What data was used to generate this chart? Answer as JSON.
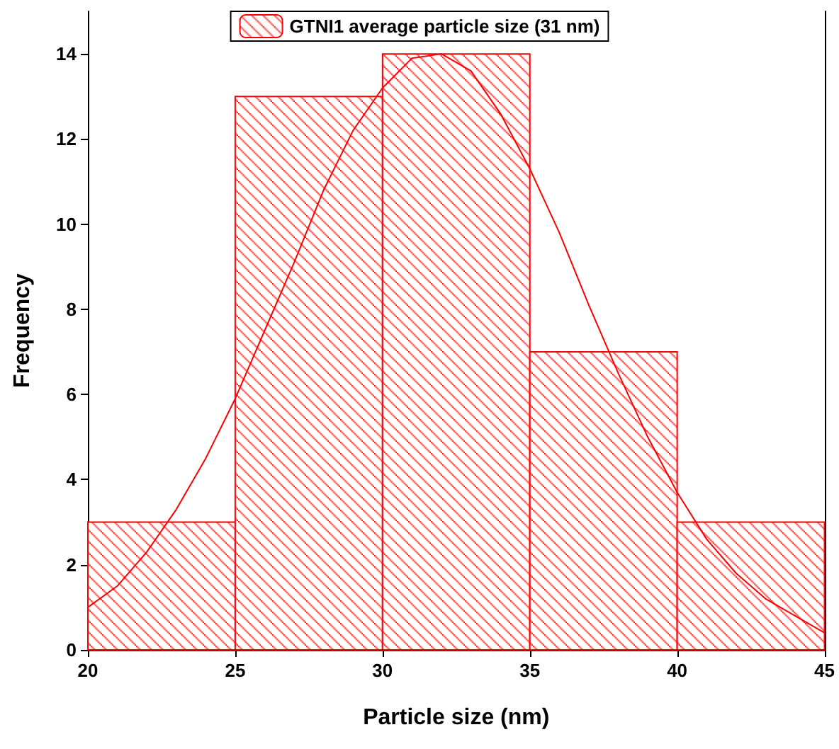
{
  "chart_data": {
    "type": "histogram",
    "xlabel": "Particle size (nm)",
    "ylabel": "Frequency",
    "bins": [
      20,
      25,
      30,
      35,
      40,
      45
    ],
    "series": [
      {
        "name": "GTNI1 average particle size (31 nm)",
        "color": "#ff0000",
        "values": [
          3,
          13,
          14,
          7,
          3
        ]
      },
      {
        "type": "line",
        "color": "#ff0000",
        "x": [
          20,
          21,
          22,
          23,
          24,
          25,
          26,
          27,
          28,
          29,
          30,
          31,
          32,
          33,
          34,
          35,
          36,
          37,
          38,
          39,
          40,
          41,
          42,
          43,
          44,
          45
        ],
        "values": [
          1.0,
          1.5,
          2.3,
          3.3,
          4.5,
          5.9,
          7.5,
          9.1,
          10.8,
          12.2,
          13.2,
          13.9,
          14.0,
          13.6,
          12.6,
          11.3,
          9.8,
          8.1,
          6.5,
          5.0,
          3.7,
          2.6,
          1.8,
          1.2,
          0.8,
          0.4
        ]
      }
    ],
    "xlim": [
      20,
      45
    ],
    "ylim": [
      0,
      15
    ],
    "xticks": [
      20,
      25,
      30,
      35,
      40,
      45
    ],
    "yticks": [
      0,
      2,
      4,
      6,
      8,
      10,
      12,
      14
    ],
    "legend": "top",
    "grid": false,
    "marker": "none"
  }
}
